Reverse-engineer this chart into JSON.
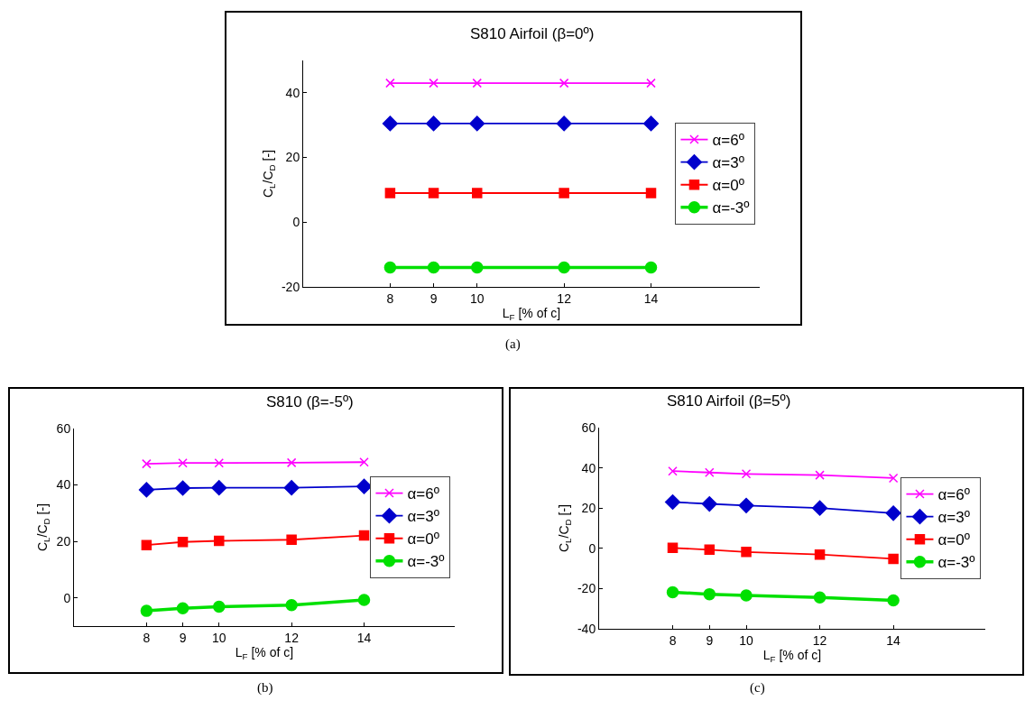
{
  "chart_data": [
    {
      "type": "line",
      "title": "S810 Airfoil (β=0º)",
      "xlabel": "L$_{F}$ [% of c]",
      "ylabel": "C$_{L}$/C$_{D}$ [-]",
      "annotations": [
        "(a)"
      ],
      "x": [
        8,
        9,
        10,
        12,
        14
      ],
      "xlim": [
        6,
        16.5
      ],
      "xticks": [
        8,
        9,
        10,
        12,
        14
      ],
      "ylim": [
        -20,
        50
      ],
      "yticks": [
        -20,
        0,
        20,
        40
      ],
      "legend": "right",
      "series": [
        {
          "name": "α=6º",
          "color": "#ff00ff",
          "marker": "cross",
          "values": [
            43,
            43,
            43,
            43,
            43
          ]
        },
        {
          "name": "α=3º",
          "color": "#0000cc",
          "marker": "diamond",
          "values": [
            30.5,
            30.5,
            30.5,
            30.5,
            30.5
          ]
        },
        {
          "name": "α=0º",
          "color": "#ff0000",
          "marker": "square",
          "values": [
            9,
            9,
            9,
            9,
            9
          ]
        },
        {
          "name": "α=-3º",
          "color": "#00e000",
          "marker": "circle",
          "values": [
            -14,
            -14,
            -14,
            -14,
            -14
          ]
        }
      ]
    },
    {
      "type": "line",
      "title": "S810 (β=-5º)",
      "xlabel": "L$_{F}$ [% of c]",
      "ylabel": "C$_{L}$/C$_{D}$ [-]",
      "annotations": [
        "(b)"
      ],
      "x": [
        8,
        9,
        10,
        12,
        14
      ],
      "xlim": [
        6,
        16.5
      ],
      "xticks": [
        8,
        9,
        10,
        12,
        14
      ],
      "ylim": [
        -10,
        60
      ],
      "yticks": [
        0,
        20,
        40,
        60
      ],
      "legend": "right",
      "series": [
        {
          "name": "α=6º",
          "color": "#ff00ff",
          "marker": "cross",
          "values": [
            47.5,
            47.8,
            47.8,
            47.9,
            48.1
          ]
        },
        {
          "name": "α=3º",
          "color": "#0000cc",
          "marker": "diamond",
          "values": [
            38.3,
            38.9,
            39,
            39,
            39.5
          ]
        },
        {
          "name": "α=0º",
          "color": "#ff0000",
          "marker": "square",
          "values": [
            18.7,
            19.8,
            20.2,
            20.6,
            22.1
          ]
        },
        {
          "name": "α=-3º",
          "color": "#00e000",
          "marker": "circle",
          "values": [
            -4.6,
            -3.7,
            -3.1,
            -2.6,
            -0.7
          ]
        }
      ]
    },
    {
      "type": "line",
      "title": "S810 Airfoil (β=5º)",
      "xlabel": "L$_{F}$ [% of c]",
      "ylabel": "C$_{L}$/C$_{D}$ [-]",
      "annotations": [
        "(c)"
      ],
      "x": [
        8,
        9,
        10,
        12,
        14
      ],
      "xlim": [
        6,
        16.5
      ],
      "xticks": [
        8,
        9,
        10,
        12,
        14
      ],
      "ylim": [
        -40,
        60
      ],
      "yticks": [
        -40,
        -20,
        0,
        20,
        40,
        60
      ],
      "legend": "right",
      "series": [
        {
          "name": "α=6º",
          "color": "#ff00ff",
          "marker": "cross",
          "values": [
            38.4,
            37.7,
            37,
            36.4,
            34.9
          ]
        },
        {
          "name": "α=3º",
          "color": "#0000cc",
          "marker": "diamond",
          "values": [
            23,
            22.1,
            21.3,
            20,
            17.5
          ]
        },
        {
          "name": "α=0º",
          "color": "#ff0000",
          "marker": "square",
          "values": [
            0.2,
            -0.7,
            -1.8,
            -3.1,
            -5.2
          ]
        },
        {
          "name": "α=-3º",
          "color": "#00e000",
          "marker": "circle",
          "values": [
            -21.8,
            -22.8,
            -23.4,
            -24.4,
            -25.9
          ]
        }
      ]
    }
  ]
}
